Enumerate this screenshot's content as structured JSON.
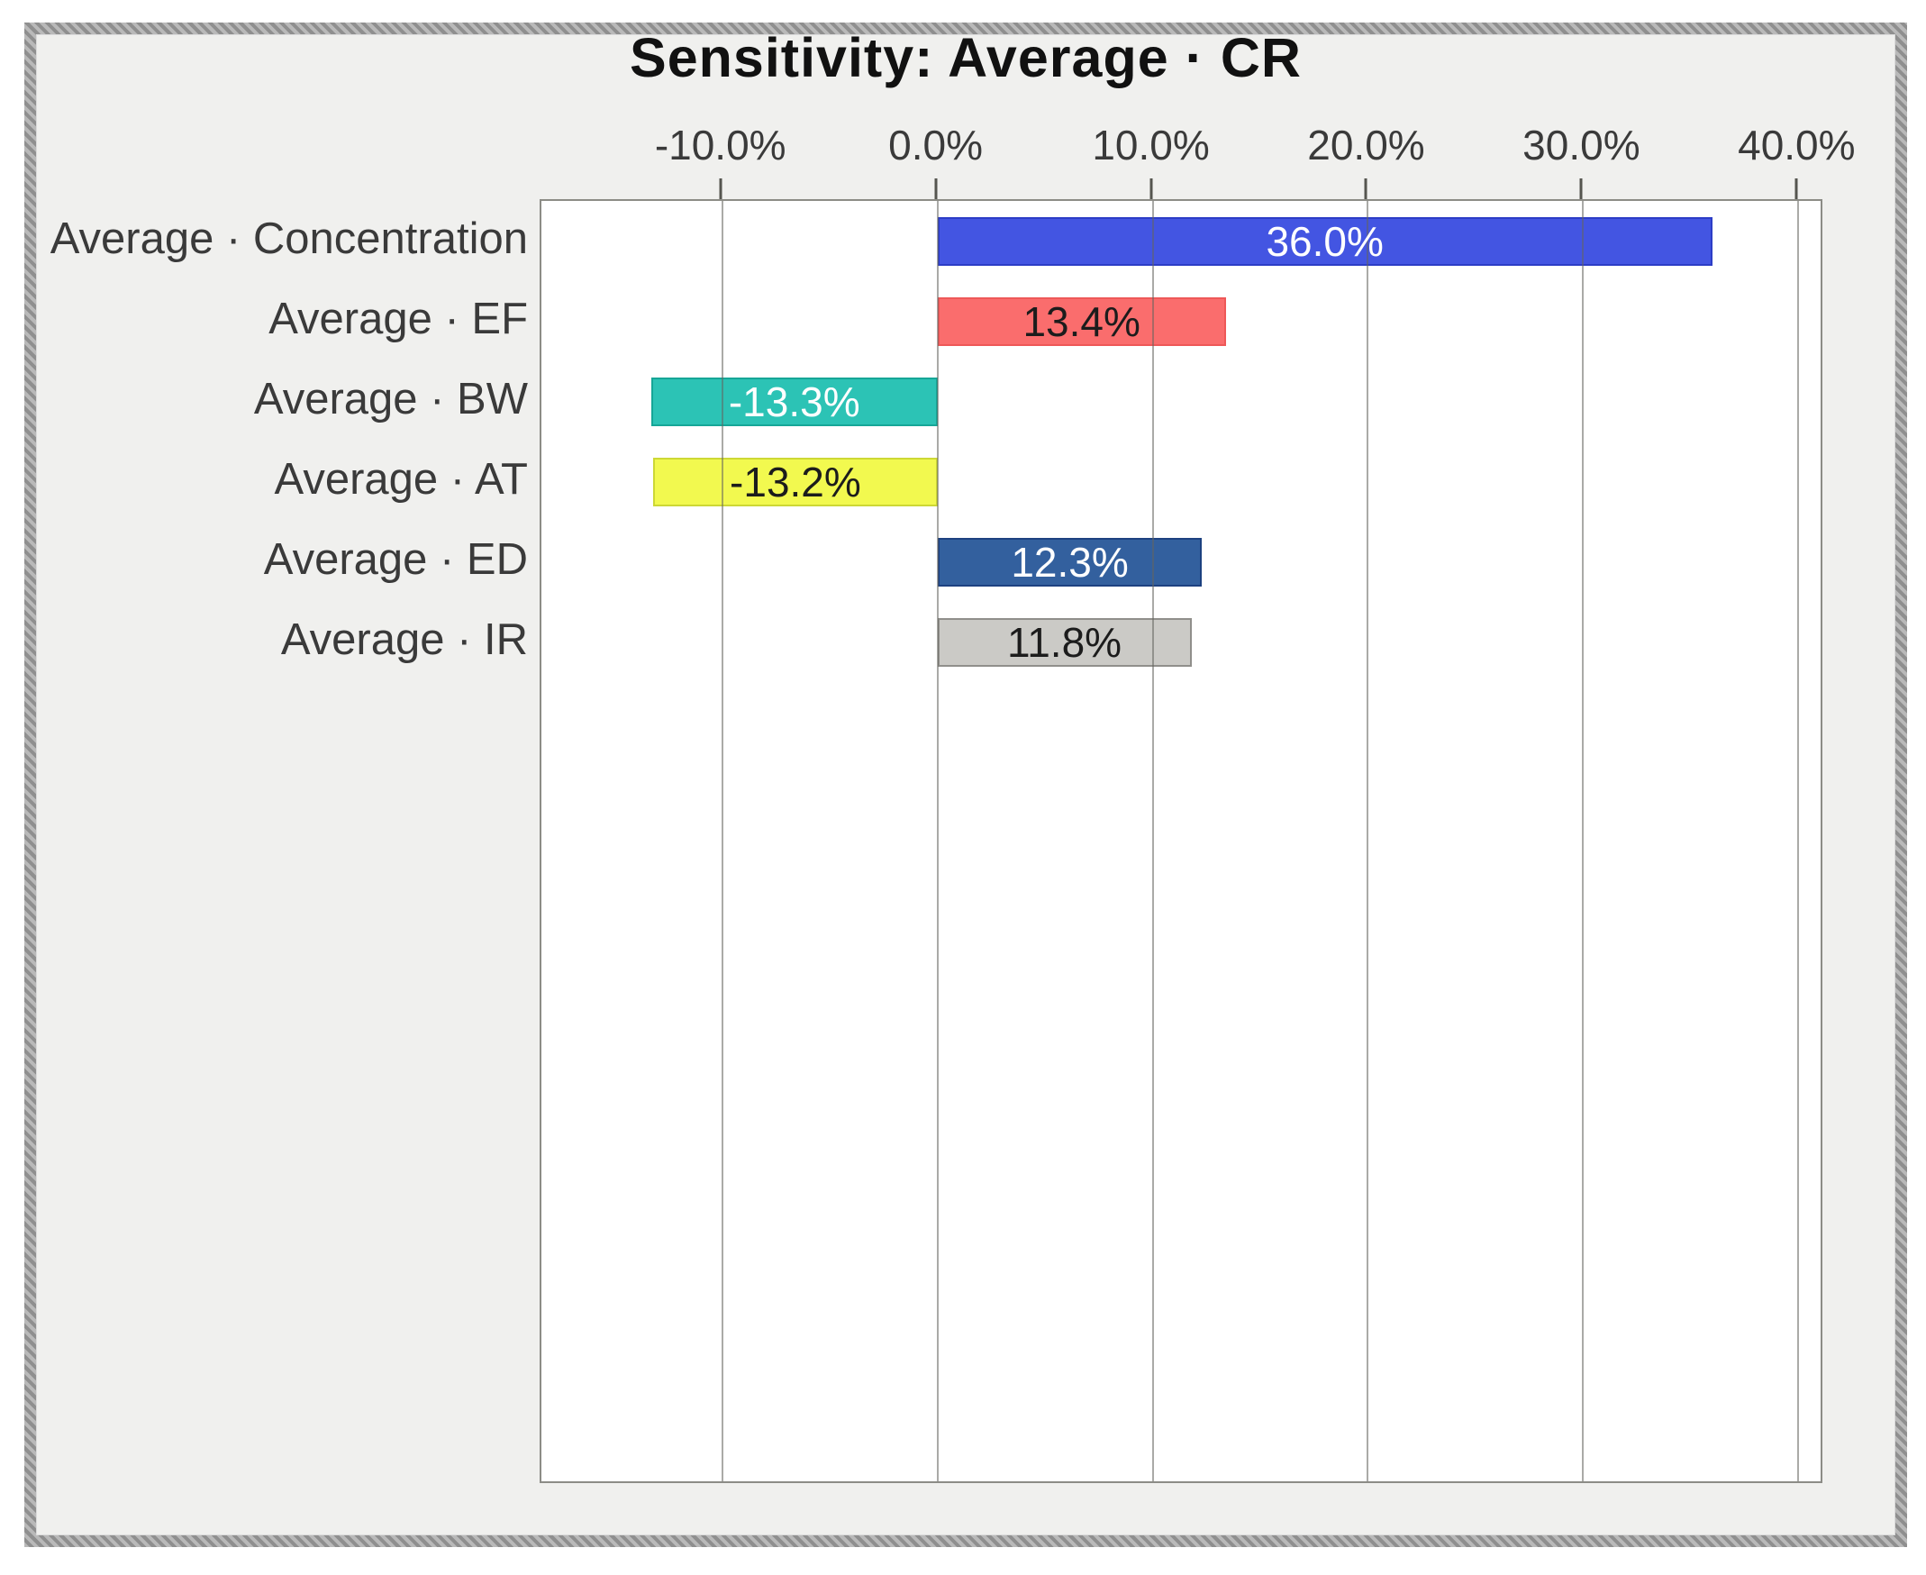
{
  "chart_data": {
    "type": "bar",
    "orientation": "horizontal",
    "title": "Sensitivity: Average · CR",
    "categories": [
      "Average · Concentration",
      "Average · EF",
      "Average · BW",
      "Average · AT",
      "Average · ED",
      "Average · IR"
    ],
    "values": [
      36.0,
      13.4,
      -13.3,
      -13.2,
      12.3,
      11.8
    ],
    "value_labels": [
      "36.0%",
      "13.4%",
      "-13.3%",
      "-13.2%",
      "12.3%",
      "11.8%"
    ],
    "bar_colors": [
      "#4355e2",
      "#fa6d6d",
      "#2cc3b5",
      "#f2f94f",
      "#33609e",
      "#cbcac6"
    ],
    "bar_border_colors": [
      "#2c3dc6",
      "#ee5858",
      "#16a697",
      "#cdd835",
      "#1d4180",
      "#908f8b"
    ],
    "value_label_colors": [
      "#ffffff",
      "#1c1c1c",
      "#ffffff",
      "#1c1c1c",
      "#ffffff",
      "#1c1c1c"
    ],
    "x_tick_values": [
      -10,
      0,
      10,
      20,
      30,
      40
    ],
    "x_tick_labels": [
      "-10.0%",
      "0.0%",
      "10.0%",
      "20.0%",
      "30.0%",
      "40.0%"
    ],
    "xlim": [
      -18.4,
      41.2
    ],
    "xlabel": "",
    "ylabel": "",
    "grid": true,
    "legend": false,
    "title_color": "#111111",
    "axis_text_color": "#3a3a3a",
    "gridline_color": "rgba(100,100,94,0.55)",
    "plot_bg": "#ffffff",
    "chart_bg": "#f0f0ee"
  }
}
